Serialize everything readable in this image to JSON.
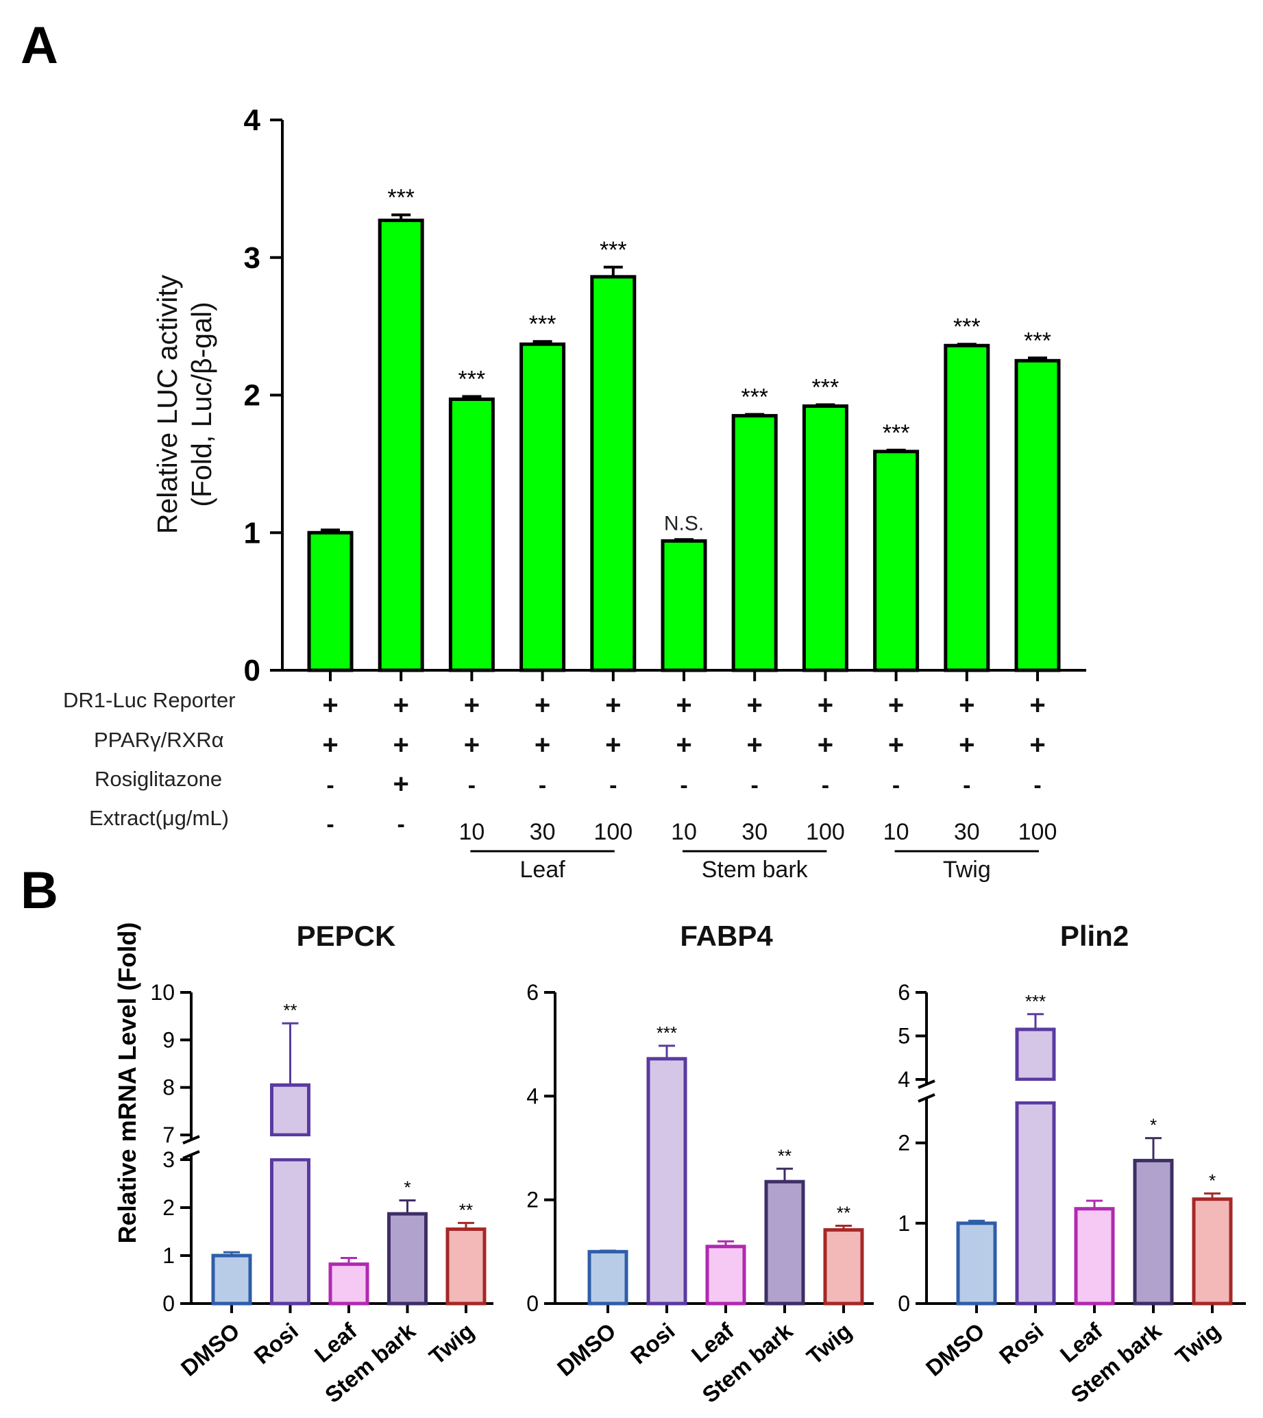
{
  "panel_a_label": "A",
  "panel_b_label": "B",
  "chart_data": [
    {
      "type": "bar",
      "panel": "A",
      "title": "",
      "ylabel": "Relative LUC activity\n(Fold, Luc/β-gal)",
      "ylabel_line1": "Relative LUC activity",
      "ylabel_line2": "(Fold, Luc/β-gal)",
      "ylim": [
        0,
        4
      ],
      "yticks": [
        "0",
        "1",
        "2",
        "3",
        "4"
      ],
      "color": "#00ff00",
      "values": [
        1.0,
        3.27,
        1.97,
        2.37,
        2.86,
        0.94,
        1.85,
        1.92,
        1.59,
        2.36,
        2.25
      ],
      "errors": [
        0.02,
        0.04,
        0.02,
        0.02,
        0.07,
        0.01,
        0.01,
        0.01,
        0.01,
        0.01,
        0.02
      ],
      "significance": [
        "",
        "***",
        "***",
        "***",
        "***",
        "N.S.",
        "***",
        "***",
        "***",
        "***",
        "***"
      ],
      "condition_rows": [
        {
          "label": "DR1-Luc Reporter",
          "values": [
            "+",
            "+",
            "+",
            "+",
            "+",
            "+",
            "+",
            "+",
            "+",
            "+",
            "+"
          ]
        },
        {
          "label": "PPARγ/RXRα",
          "values": [
            "+",
            "+",
            "+",
            "+",
            "+",
            "+",
            "+",
            "+",
            "+",
            "+",
            "+"
          ]
        },
        {
          "label": "Rosiglitazone",
          "values": [
            "-",
            "+",
            "-",
            "-",
            "-",
            "-",
            "-",
            "-",
            "-",
            "-",
            "-"
          ]
        },
        {
          "label": "Extract(μg/mL)",
          "values": [
            "-",
            "-",
            "10",
            "30",
            "100",
            "10",
            "30",
            "100",
            "10",
            "30",
            "100"
          ]
        }
      ],
      "groups": [
        {
          "label": "Leaf",
          "from": 2,
          "to": 4
        },
        {
          "label": "Stem bark",
          "from": 5,
          "to": 7
        },
        {
          "label": "Twig",
          "from": 8,
          "to": 10
        }
      ]
    },
    {
      "type": "bar",
      "panel": "B",
      "title": "PEPCK",
      "ylabel": "Relative mRNA Level (Fold)",
      "categories": [
        "DMSO",
        "Rosi",
        "Leaf",
        "Stem bark",
        "Twig"
      ],
      "values": [
        1.0,
        8.05,
        0.82,
        1.87,
        1.55
      ],
      "errors": [
        0.07,
        1.3,
        0.13,
        0.28,
        0.13
      ],
      "significance": [
        "",
        "**",
        "",
        "*",
        "**"
      ],
      "axis_break": {
        "lower": [
          0,
          3
        ],
        "upper": [
          7,
          10
        ]
      },
      "yticks_lower": [
        "0",
        "1",
        "2",
        "3"
      ],
      "yticks_upper": [
        "7",
        "8",
        "9",
        "10"
      ],
      "fill_colors": [
        "#b8cce8",
        "#d5c6e8",
        "#f6c8f4",
        "#b0a2cc",
        "#f3b8b8"
      ],
      "edge_colors": [
        "#2f5ea8",
        "#5a3aa0",
        "#b02ab0",
        "#3d2e66",
        "#a62828"
      ]
    },
    {
      "type": "bar",
      "panel": "B",
      "title": "FABP4",
      "categories": [
        "DMSO",
        "Rosi",
        "Leaf",
        "Stem bark",
        "Twig"
      ],
      "values": [
        1.0,
        4.72,
        1.1,
        2.35,
        1.42
      ],
      "errors": [
        0.02,
        0.25,
        0.1,
        0.25,
        0.08
      ],
      "significance": [
        "",
        "***",
        "",
        "**",
        "**"
      ],
      "ylim": [
        0,
        6
      ],
      "yticks": [
        "0",
        "2",
        "4",
        "6"
      ],
      "fill_colors": [
        "#b8cce8",
        "#d5c6e8",
        "#f6c8f4",
        "#b0a2cc",
        "#f3b8b8"
      ],
      "edge_colors": [
        "#2f5ea8",
        "#5a3aa0",
        "#b02ab0",
        "#3d2e66",
        "#a62828"
      ]
    },
    {
      "type": "bar",
      "panel": "B",
      "title": "Plin2",
      "categories": [
        "DMSO",
        "Rosi",
        "Leaf",
        "Stem bark",
        "Twig"
      ],
      "values": [
        1.0,
        5.15,
        1.18,
        1.78,
        1.3
      ],
      "errors": [
        0.03,
        0.35,
        0.1,
        0.28,
        0.07
      ],
      "significance": [
        "",
        "***",
        "",
        "*",
        "*"
      ],
      "axis_break": {
        "lower": [
          0,
          2.5
        ],
        "upper": [
          4,
          6
        ]
      },
      "yticks_lower": [
        "0",
        "1",
        "2"
      ],
      "yticks_upper": [
        "4",
        "5",
        "6"
      ],
      "fill_colors": [
        "#b8cce8",
        "#d5c6e8",
        "#f6c8f4",
        "#b0a2cc",
        "#f3b8b8"
      ],
      "edge_colors": [
        "#2f5ea8",
        "#5a3aa0",
        "#b02ab0",
        "#3d2e66",
        "#a62828"
      ]
    }
  ]
}
